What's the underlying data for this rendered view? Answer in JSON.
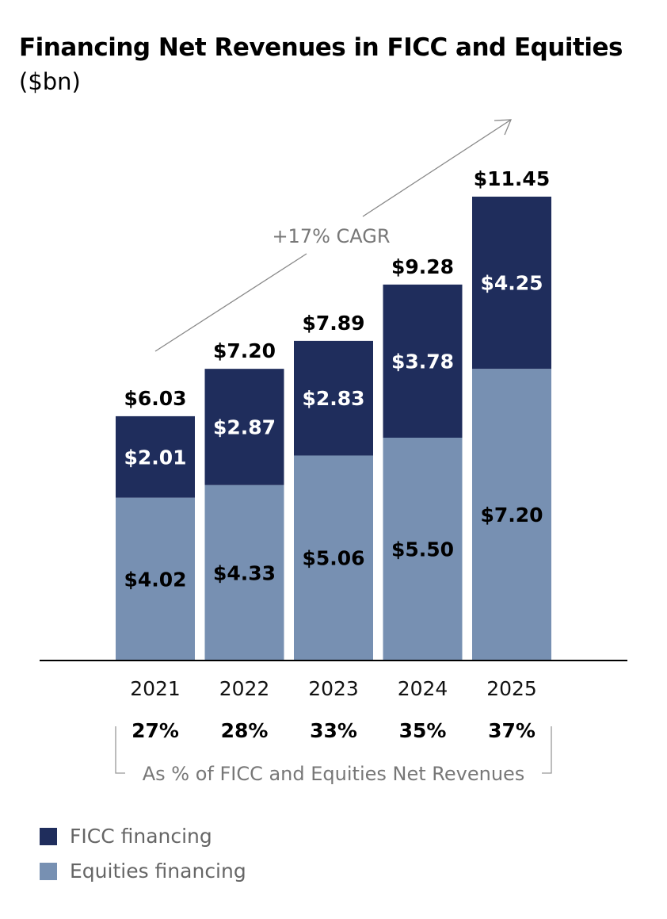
{
  "title": "Financing Net Revenues in FICC and Equities",
  "subtitle": "($bn)",
  "chart_data": {
    "type": "bar",
    "stacked": true,
    "categories": [
      "2021",
      "2022",
      "2023",
      "2024",
      "2025"
    ],
    "series": [
      {
        "name": "Equities financing",
        "values": [
          4.02,
          4.33,
          5.06,
          5.5,
          7.2
        ],
        "labels": [
          "$4.02",
          "$4.33",
          "$5.06",
          "$5.50",
          "$7.20"
        ],
        "color": "#7790b2"
      },
      {
        "name": "FICC financing",
        "values": [
          2.01,
          2.87,
          2.83,
          3.78,
          4.25
        ],
        "labels": [
          "$2.01",
          "$2.87",
          "$2.83",
          "$3.78",
          "$4.25"
        ],
        "color": "#1f2d5c"
      }
    ],
    "totals": [
      6.03,
      7.2,
      7.89,
      9.28,
      11.45
    ],
    "total_labels": [
      "$6.03",
      "$7.20",
      "$7.89",
      "$9.28",
      "$11.45"
    ],
    "annotation": "+17% CAGR",
    "percent_labels": [
      "27%",
      "28%",
      "33%",
      "35%",
      "37%"
    ],
    "percent_caption": "As % of FICC and Equities Net Revenues",
    "ylim": [
      0,
      11.45
    ],
    "grid": false,
    "legend_position": "bottom-left"
  },
  "legend": [
    {
      "label": "FICC financing",
      "color": "#1f2d5c"
    },
    {
      "label": "Equities financing",
      "color": "#7790b2"
    }
  ]
}
